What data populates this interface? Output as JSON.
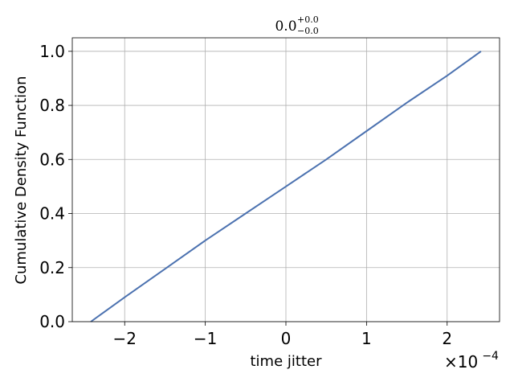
{
  "chart_data": {
    "type": "line",
    "title": {
      "base": "0.0",
      "sup": "+0.0",
      "sub": "−0.0"
    },
    "xlabel": "time jitter",
    "ylabel": "Cumulative Density Function",
    "x_offset": {
      "base": "×10",
      "exponent": "−4"
    },
    "xlim": [
      -2.65,
      2.65
    ],
    "ylim": [
      0.0,
      1.05
    ],
    "x_scale_exponent": -4,
    "xticks": [
      -2,
      -1,
      0,
      1,
      2
    ],
    "xtick_labels": [
      "−2",
      "−1",
      "0",
      "1",
      "2"
    ],
    "yticks": [
      0.0,
      0.2,
      0.4,
      0.6,
      0.8,
      1.0
    ],
    "ytick_labels": [
      "0.0",
      "0.2",
      "0.4",
      "0.6",
      "0.8",
      "1.0"
    ],
    "grid": true,
    "line_color": "#4c72b0",
    "series": [
      {
        "x": [
          -2.42,
          -2.0,
          -1.5,
          -1.0,
          -0.5,
          0.0,
          0.5,
          1.0,
          1.5,
          2.0,
          2.42
        ],
        "y": [
          0.0,
          0.09,
          0.195,
          0.3,
          0.4,
          0.5,
          0.6,
          0.705,
          0.81,
          0.91,
          1.0
        ]
      }
    ]
  }
}
